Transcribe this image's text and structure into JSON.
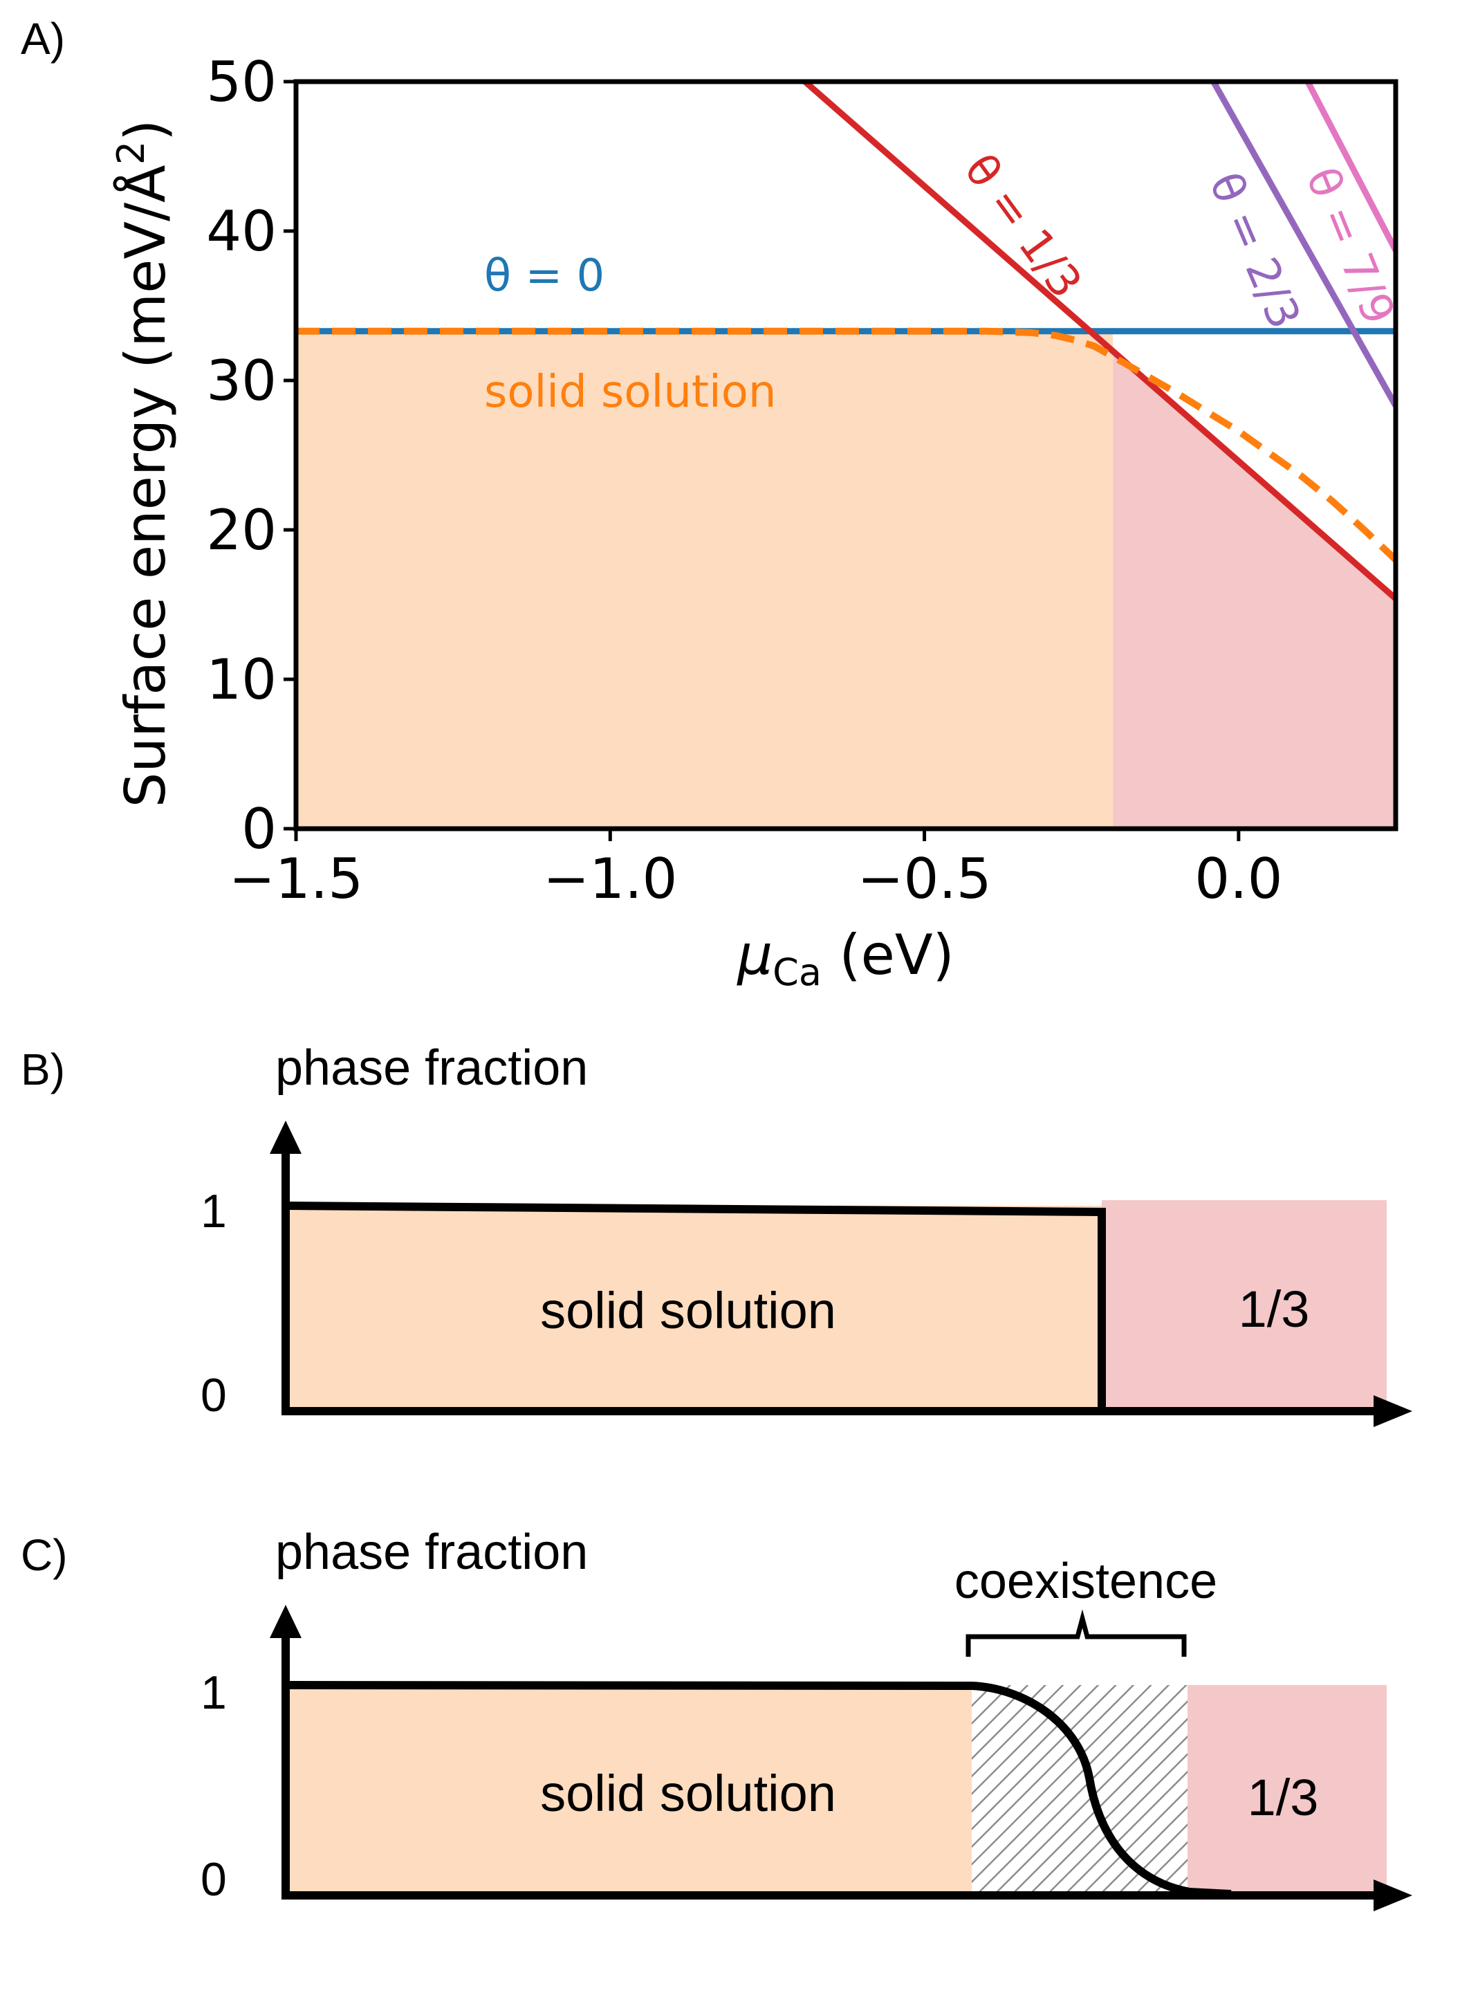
{
  "panels": {
    "a_label": "A)",
    "b_label": "B)",
    "c_label": "C)"
  },
  "colors": {
    "blue": "#1f77b4",
    "orange": "#ff7f0e",
    "red": "#d62728",
    "purple": "#9467bd",
    "pink": "#e377c2",
    "fill_solid_solution": "#fddcc0",
    "fill_one_third": "#f4c7c9",
    "axis": "#000000"
  },
  "chart_data": [
    {
      "type": "line",
      "xlabel_main": "μ",
      "xlabel_sub": "Ca",
      "xlabel_unit": " (eV)",
      "ylabel": "Surface energy (meV/Å",
      "ylabel_sup": "2",
      "ylabel_close": ")",
      "xlim": [
        -1.5,
        0.25
      ],
      "ylim": [
        0,
        50
      ],
      "xticks": [
        -1.5,
        -1.0,
        -0.5,
        0.0
      ],
      "xtick_labels": [
        "−1.5",
        "−1.0",
        "−0.5",
        "0.0"
      ],
      "yticks": [
        0,
        10,
        20,
        30,
        40,
        50
      ],
      "ytick_labels": [
        "0",
        "10",
        "20",
        "30",
        "40",
        "50"
      ],
      "grid": false,
      "series": [
        {
          "name": "θ = 0",
          "color": "#1f77b4",
          "style": "solid",
          "x": [
            -1.5,
            0.25
          ],
          "y": [
            33.3,
            33.3
          ]
        },
        {
          "name": "θ = 1/3",
          "color": "#d62728",
          "style": "solid",
          "x": [
            -0.69,
            0.25
          ],
          "y": [
            50,
            15.4
          ]
        },
        {
          "name": "θ = 2/3",
          "color": "#9467bd",
          "style": "solid",
          "x": [
            -0.04,
            0.25
          ],
          "y": [
            50,
            28.3
          ]
        },
        {
          "name": "θ = 7/9",
          "color": "#e377c2",
          "style": "solid",
          "x": [
            0.11,
            0.25
          ],
          "y": [
            50,
            38.7
          ]
        },
        {
          "name": "solid solution",
          "color": "#ff7f0e",
          "style": "dashed",
          "x": [
            -1.5,
            -0.4,
            -0.33,
            -0.29,
            -0.26,
            -0.23,
            -0.2,
            -0.15,
            -0.1,
            -0.05,
            0.0,
            0.05,
            0.1,
            0.15,
            0.2,
            0.25
          ],
          "y": [
            33.3,
            33.3,
            33.2,
            33.0,
            32.7,
            32.3,
            31.6,
            30.4,
            29.2,
            27.9,
            26.6,
            25.1,
            23.6,
            21.9,
            20.0,
            18.0
          ]
        }
      ],
      "regions": [
        {
          "label": "solid solution",
          "x": [
            -1.5,
            -0.2
          ],
          "y_top": 33.3,
          "color": "#fddcc0"
        },
        {
          "label": "1/3",
          "x": [
            -0.2,
            0.25
          ],
          "color": "#f4c7c9"
        }
      ],
      "annotations": [
        "θ = 0",
        "θ = 1/3",
        "θ = 2/3",
        "θ = 7/9",
        "solid solution"
      ]
    },
    {
      "type": "area",
      "ylabel": "phase fraction",
      "yticks": [
        0,
        1
      ],
      "ytick_labels": [
        "0",
        "1"
      ],
      "regions": [
        {
          "label": "solid solution",
          "color": "#fddcc0"
        },
        {
          "label": "1/3",
          "color": "#f4c7c9"
        }
      ],
      "curve": "step"
    },
    {
      "type": "area",
      "ylabel": "phase fraction",
      "yticks": [
        0,
        1
      ],
      "ytick_labels": [
        "0",
        "1"
      ],
      "regions": [
        {
          "label": "solid solution",
          "color": "#fddcc0"
        },
        {
          "label": "coexistence",
          "pattern": "hatched"
        },
        {
          "label": "1/3",
          "color": "#f4c7c9"
        }
      ],
      "annotation": "coexistence",
      "curve": "smooth sigmoid"
    }
  ]
}
